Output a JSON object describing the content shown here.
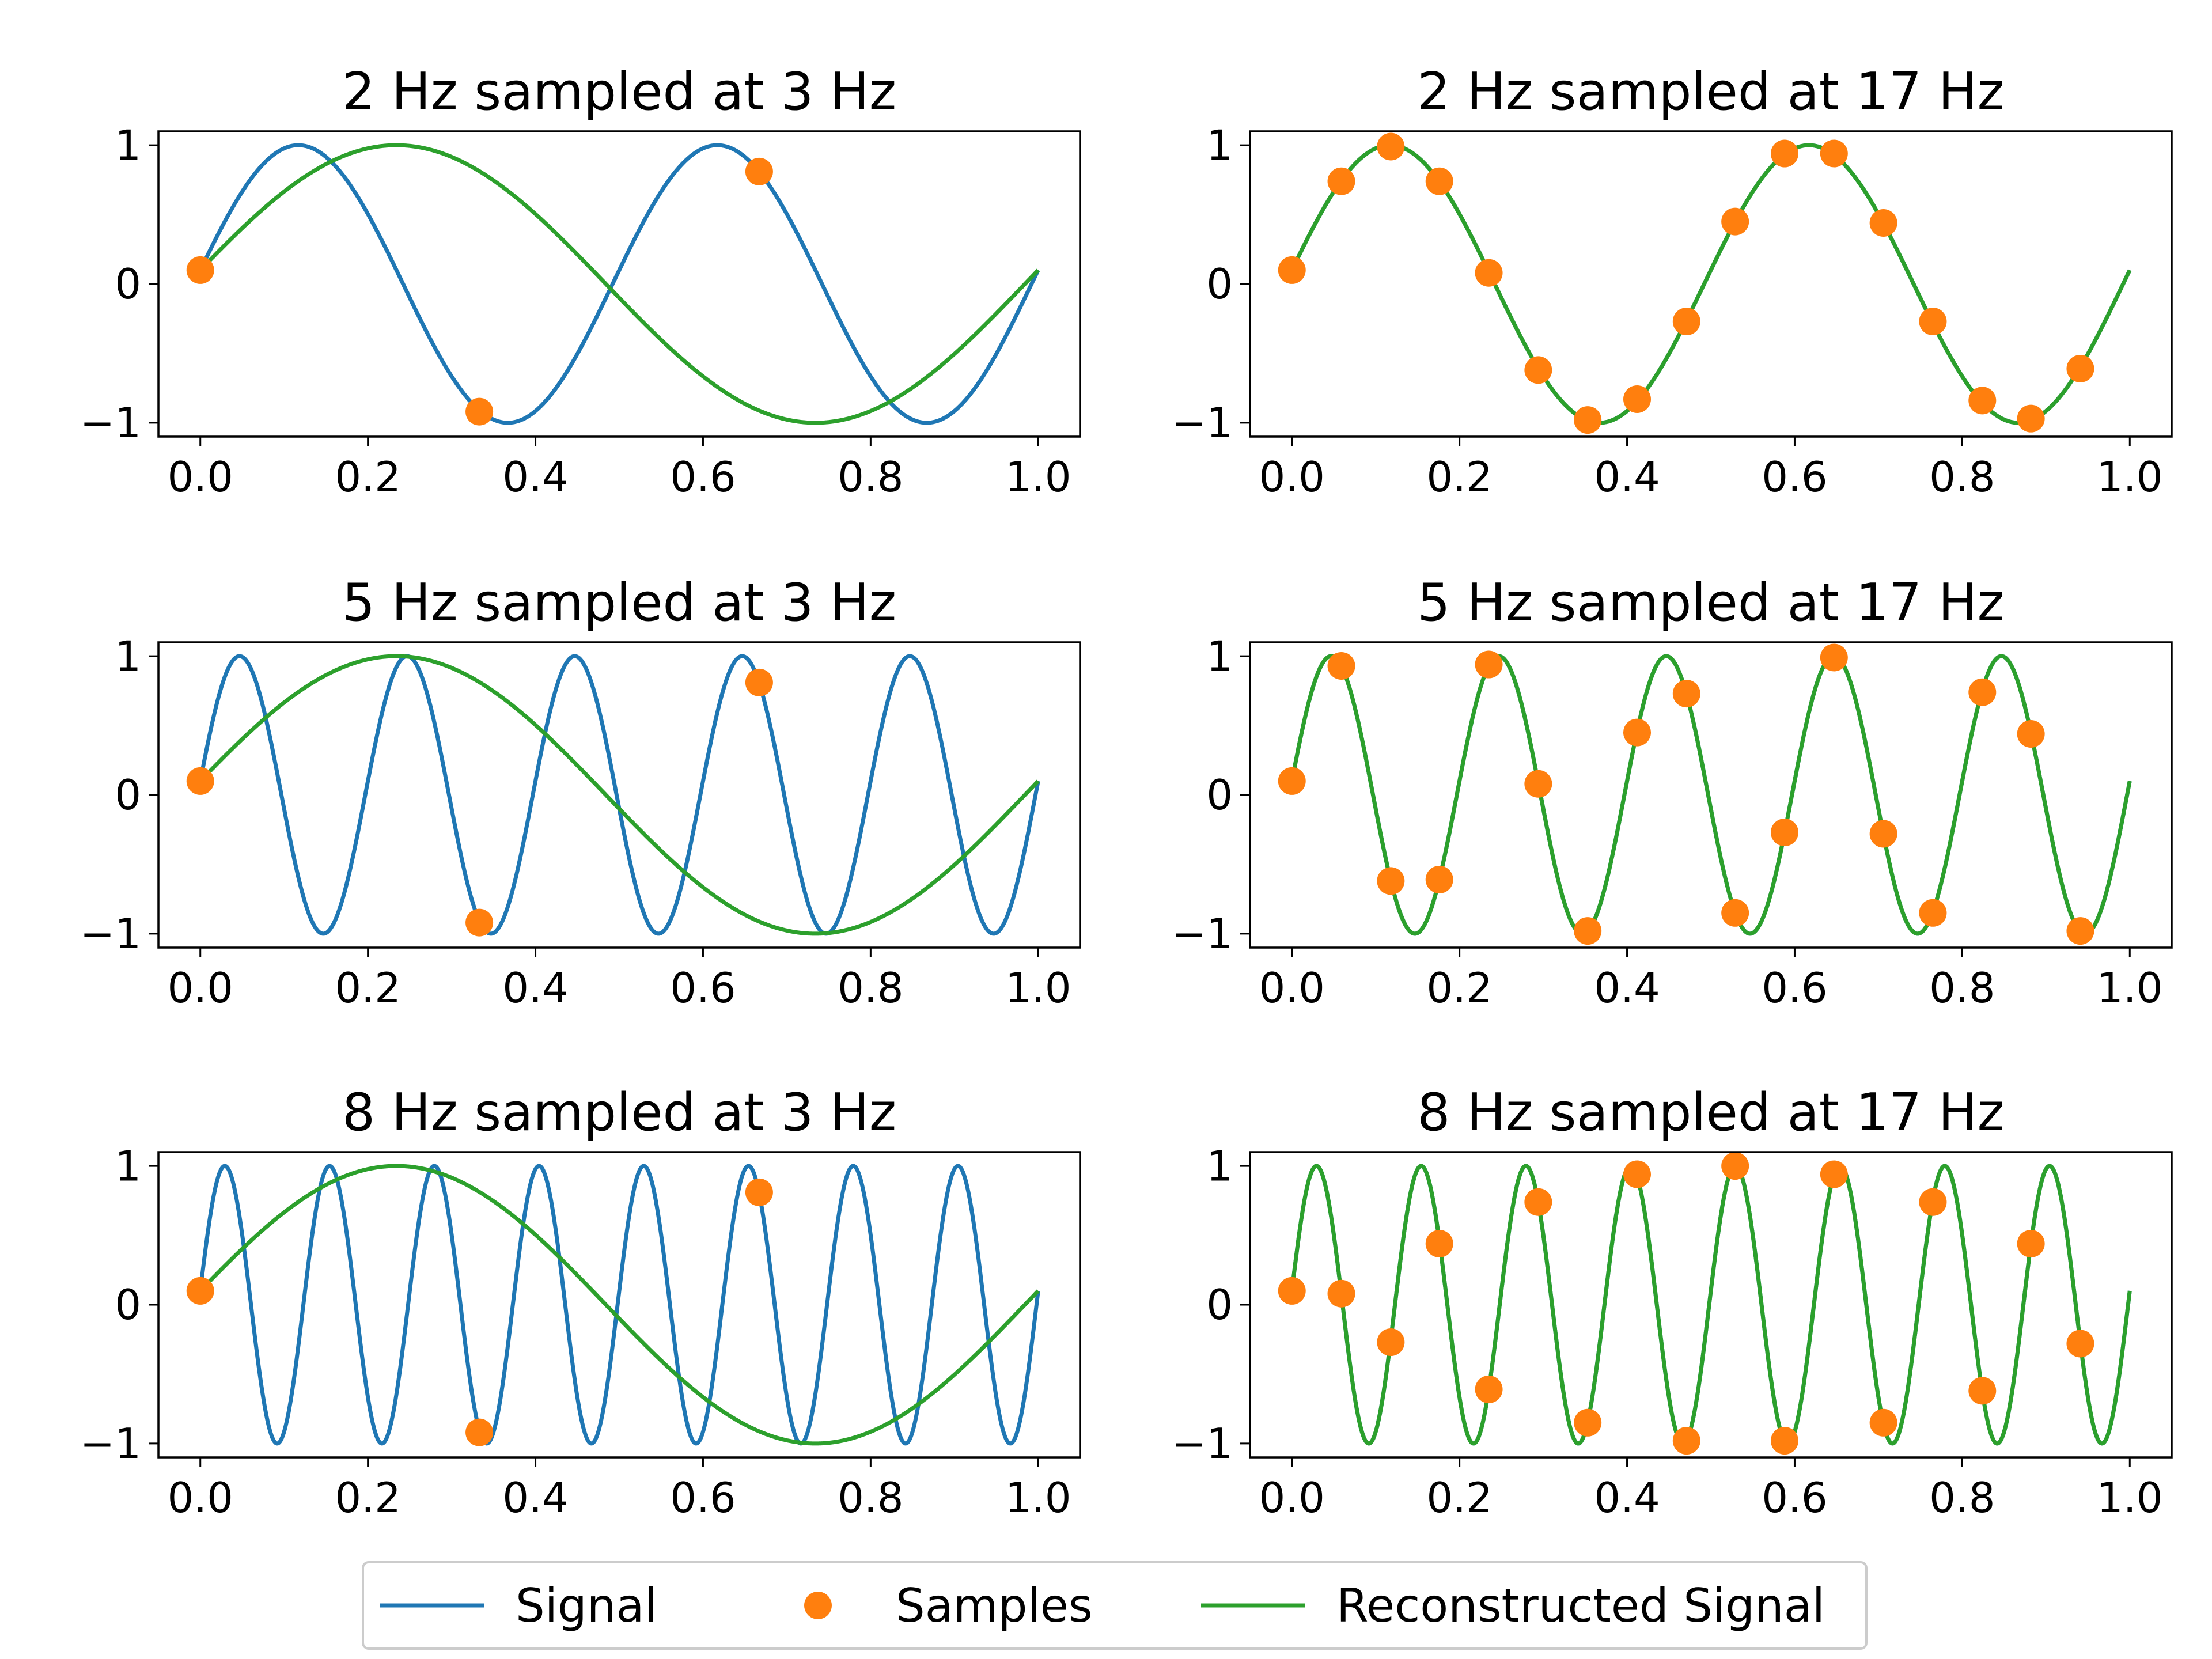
{
  "chart_data": [
    {
      "type": "line",
      "title": "2 Hz sampled at 3 Hz",
      "signal_freq_hz": 2,
      "sample_rate_hz": 3,
      "alias_freq_hz": 1,
      "phase": 0.1,
      "xlim": [
        -0.05,
        1.05
      ],
      "ylim": [
        -1.1,
        1.1
      ],
      "xticks": [
        "0.0",
        "0.2",
        "0.4",
        "0.6",
        "0.8",
        "1.0"
      ],
      "yticks": [
        "−1",
        "0",
        "1"
      ],
      "samples": {
        "x": [
          0.0,
          0.333,
          0.667
        ],
        "y": [
          0.1,
          -0.92,
          0.81
        ]
      }
    },
    {
      "type": "line",
      "title": "2 Hz sampled at 17 Hz",
      "signal_freq_hz": 2,
      "sample_rate_hz": 17,
      "alias_freq_hz": 2,
      "phase": 0.1,
      "xlim": [
        -0.05,
        1.05
      ],
      "ylim": [
        -1.1,
        1.1
      ],
      "xticks": [
        "0.0",
        "0.2",
        "0.4",
        "0.6",
        "0.8",
        "1.0"
      ],
      "yticks": [
        "−1",
        "0",
        "1"
      ],
      "samples": {
        "x": [
          0.0,
          0.059,
          0.118,
          0.176,
          0.235,
          0.294,
          0.353,
          0.412,
          0.471,
          0.529,
          0.588,
          0.647,
          0.706,
          0.765,
          0.824,
          0.882,
          0.941
        ],
        "y": [
          0.1,
          0.74,
          0.99,
          0.74,
          0.08,
          -0.62,
          -0.98,
          -0.83,
          -0.27,
          0.45,
          0.94,
          0.94,
          0.44,
          -0.27,
          -0.84,
          -0.97,
          -0.61
        ]
      }
    },
    {
      "type": "line",
      "title": "5 Hz sampled at 3 Hz",
      "signal_freq_hz": 5,
      "sample_rate_hz": 3,
      "alias_freq_hz": 1,
      "phase": 0.1,
      "xlim": [
        -0.05,
        1.05
      ],
      "ylim": [
        -1.1,
        1.1
      ],
      "xticks": [
        "0.0",
        "0.2",
        "0.4",
        "0.6",
        "0.8",
        "1.0"
      ],
      "yticks": [
        "−1",
        "0",
        "1"
      ],
      "samples": {
        "x": [
          0.0,
          0.333,
          0.667
        ],
        "y": [
          0.1,
          -0.92,
          0.81
        ]
      }
    },
    {
      "type": "line",
      "title": "5 Hz sampled at 17 Hz",
      "signal_freq_hz": 5,
      "sample_rate_hz": 17,
      "alias_freq_hz": 5,
      "phase": 0.1,
      "xlim": [
        -0.05,
        1.05
      ],
      "ylim": [
        -1.1,
        1.1
      ],
      "xticks": [
        "0.0",
        "0.2",
        "0.4",
        "0.6",
        "0.8",
        "1.0"
      ],
      "yticks": [
        "−1",
        "0",
        "1"
      ],
      "samples": {
        "x": [
          0.0,
          0.059,
          0.118,
          0.176,
          0.235,
          0.294,
          0.353,
          0.412,
          0.471,
          0.529,
          0.588,
          0.647,
          0.706,
          0.765,
          0.824,
          0.882,
          0.941
        ],
        "y": [
          0.1,
          0.93,
          -0.62,
          -0.61,
          0.94,
          0.08,
          -0.98,
          0.45,
          0.73,
          -0.85,
          -0.27,
          0.99,
          -0.28,
          -0.85,
          0.74,
          0.44,
          -0.98
        ]
      }
    },
    {
      "type": "line",
      "title": "8 Hz sampled at 3 Hz",
      "signal_freq_hz": 8,
      "sample_rate_hz": 3,
      "alias_freq_hz": 1,
      "phase": 0.1,
      "xlim": [
        -0.05,
        1.05
      ],
      "ylim": [
        -1.1,
        1.1
      ],
      "xticks": [
        "0.0",
        "0.2",
        "0.4",
        "0.6",
        "0.8",
        "1.0"
      ],
      "yticks": [
        "−1",
        "0",
        "1"
      ],
      "samples": {
        "x": [
          0.0,
          0.333,
          0.667
        ],
        "y": [
          0.1,
          -0.92,
          0.81
        ]
      }
    },
    {
      "type": "line",
      "title": "8 Hz sampled at 17 Hz",
      "signal_freq_hz": 8,
      "sample_rate_hz": 17,
      "alias_freq_hz": 8,
      "phase": 0.1,
      "xlim": [
        -0.05,
        1.05
      ],
      "ylim": [
        -1.1,
        1.1
      ],
      "xticks": [
        "0.0",
        "0.2",
        "0.4",
        "0.6",
        "0.8",
        "1.0"
      ],
      "yticks": [
        "−1",
        "0",
        "1"
      ],
      "samples": {
        "x": [
          0.0,
          0.059,
          0.118,
          0.176,
          0.235,
          0.294,
          0.353,
          0.412,
          0.471,
          0.529,
          0.588,
          0.647,
          0.706,
          0.765,
          0.824,
          0.882,
          0.941
        ],
        "y": [
          0.1,
          0.08,
          -0.27,
          0.44,
          -0.61,
          0.74,
          -0.85,
          0.94,
          -0.98,
          1.0,
          -0.98,
          0.94,
          -0.85,
          0.74,
          -0.62,
          0.44,
          -0.28
        ]
      }
    }
  ],
  "legend": {
    "placement": "bottom-center",
    "entries": [
      {
        "label": "Signal",
        "kind": "line",
        "color": "#1f77b4"
      },
      {
        "label": "Samples",
        "kind": "marker",
        "color": "#ff7f0e"
      },
      {
        "label": "Reconstructed Signal",
        "kind": "line",
        "color": "#2ca02c"
      }
    ]
  },
  "colors": {
    "signal": "#1f77b4",
    "samples": "#ff7f0e",
    "reconstructed": "#2ca02c",
    "axes": "#000000"
  }
}
